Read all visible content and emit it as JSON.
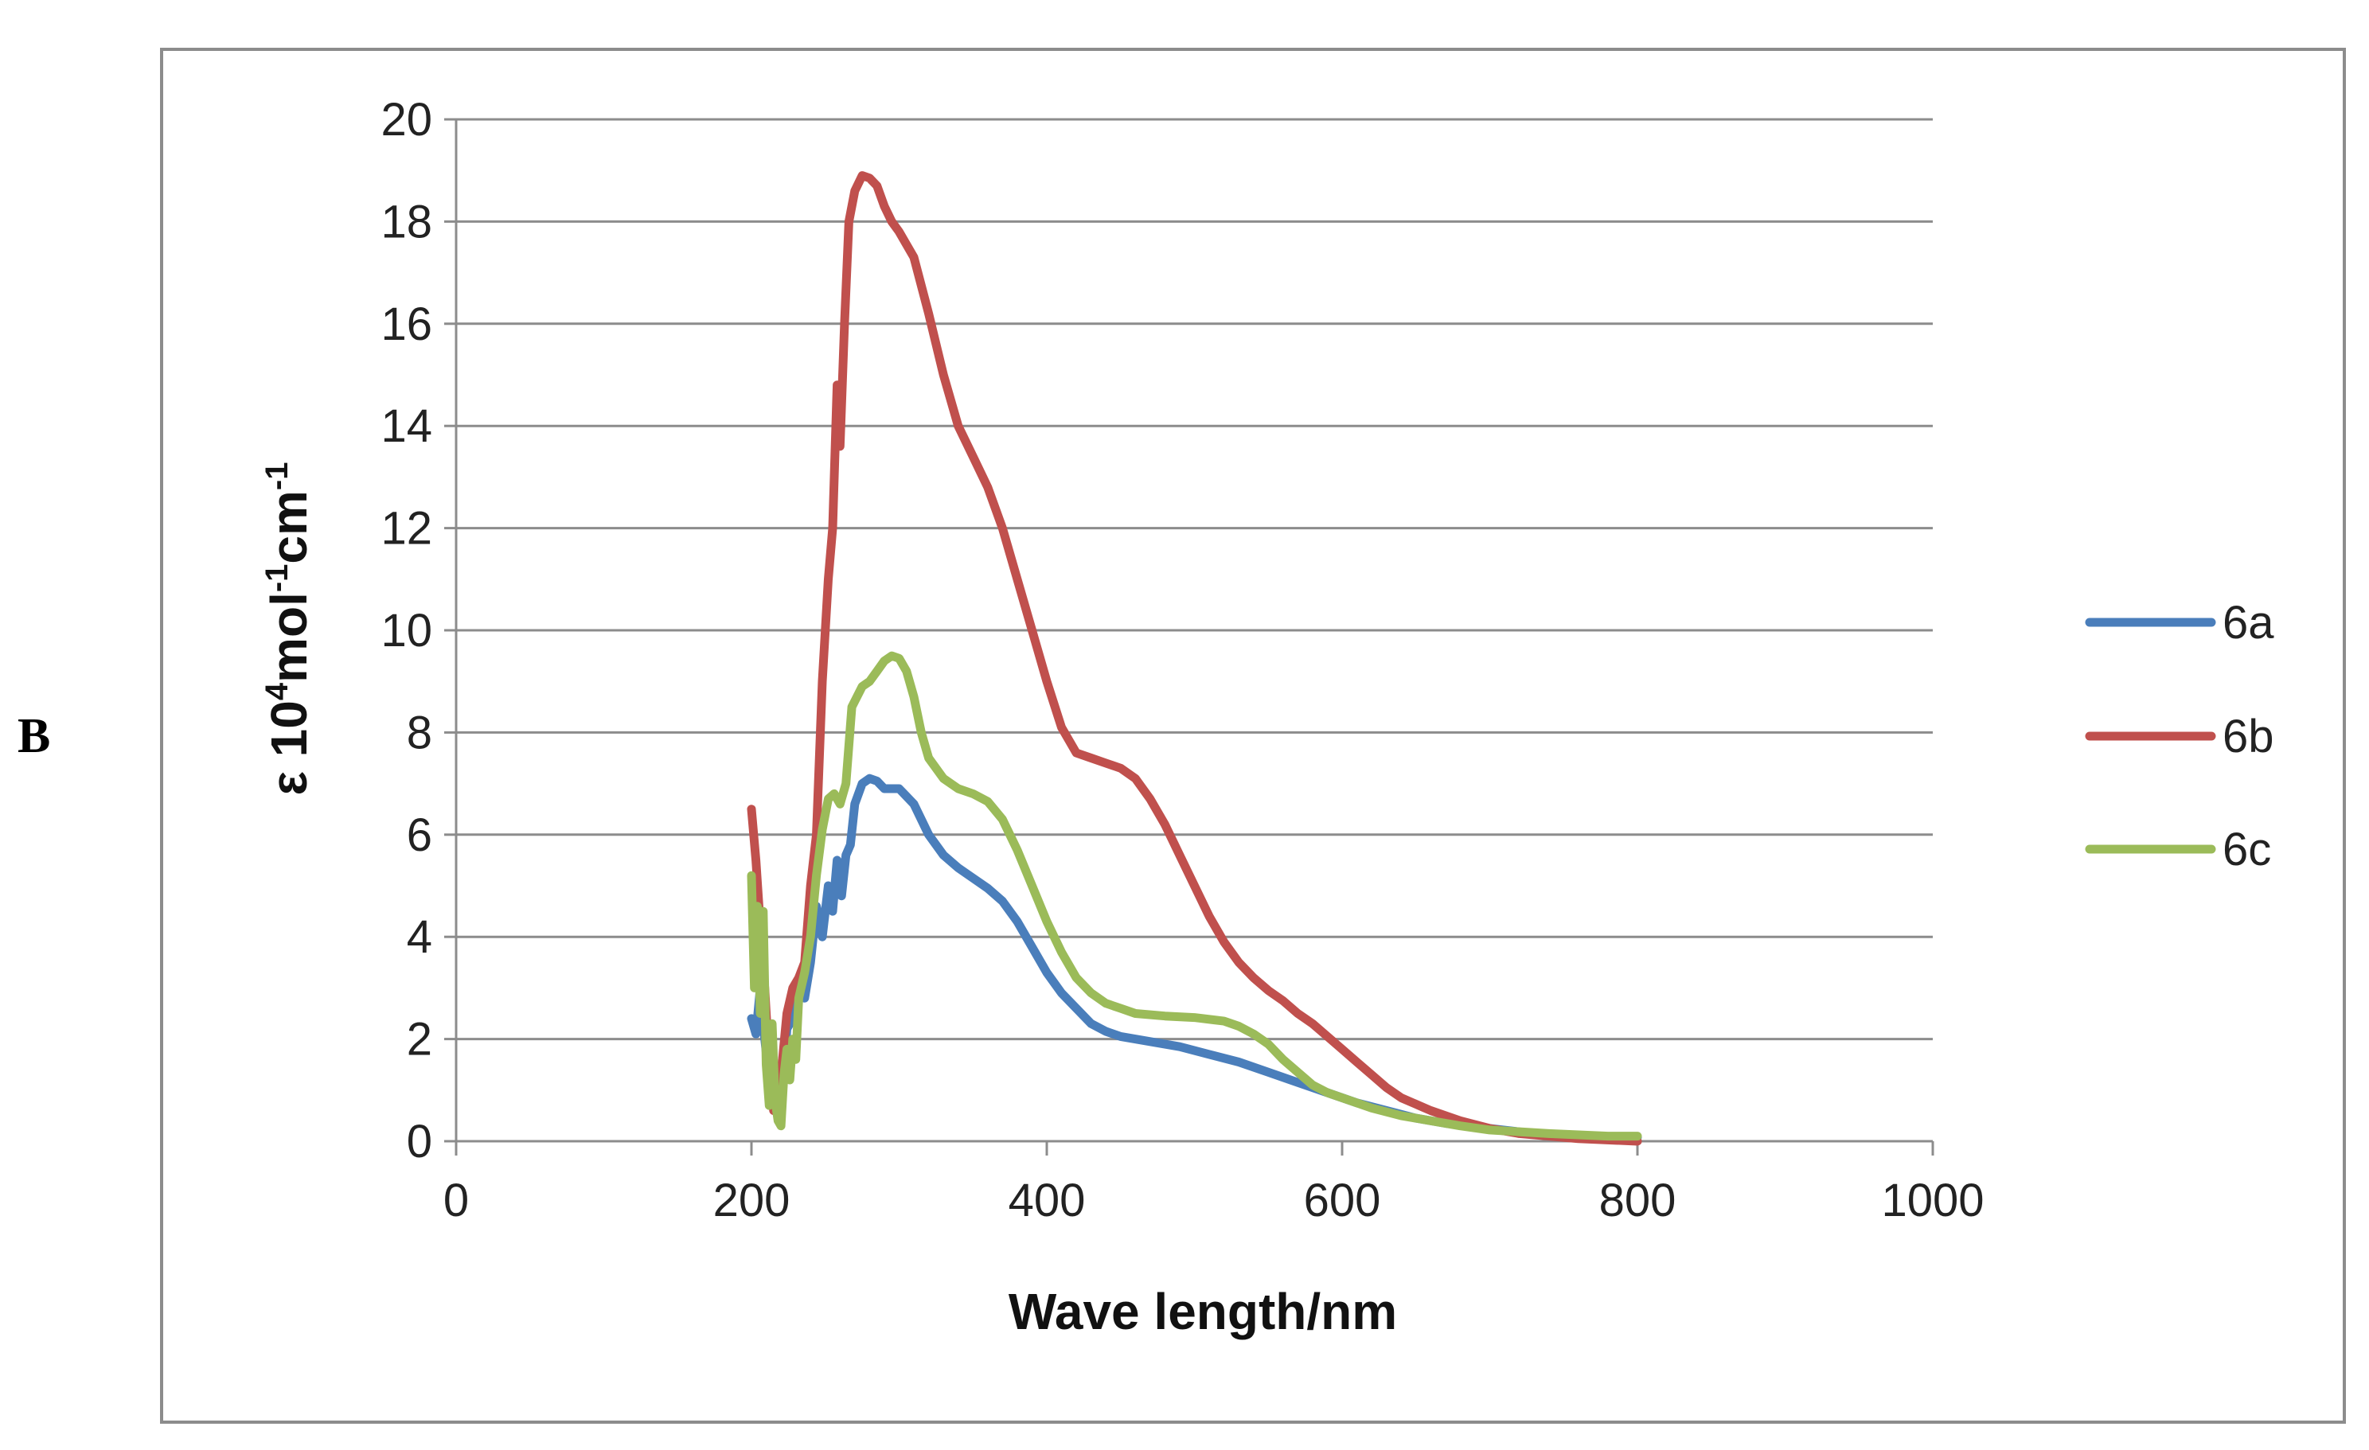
{
  "panel_label": "B",
  "chart_data": {
    "type": "line",
    "title": "",
    "xlabel": "Wave length/nm",
    "ylabel_main": "ε 10",
    "ylabel_sup1": "4",
    "ylabel_mid": "mol",
    "ylabel_sup2": "-1",
    "ylabel_mid2": "cm",
    "ylabel_sup3": "-1",
    "xlim": [
      0,
      1000
    ],
    "ylim": [
      0,
      20
    ],
    "xticks": [
      "0",
      "200",
      "400",
      "600",
      "800",
      "1000"
    ],
    "yticks": [
      "0",
      "2",
      "4",
      "6",
      "8",
      "10",
      "12",
      "14",
      "16",
      "18",
      "20"
    ],
    "grid": "horizontal",
    "legend_position": "right",
    "series": [
      {
        "name": "6a",
        "color": "#4a7ebb",
        "points": [
          [
            200,
            2.4
          ],
          [
            203,
            2.1
          ],
          [
            206,
            3.0
          ],
          [
            209,
            2.0
          ],
          [
            212,
            1.2
          ],
          [
            215,
            0.8
          ],
          [
            218,
            0.6
          ],
          [
            221,
            1.0
          ],
          [
            224,
            2.2
          ],
          [
            228,
            2.4
          ],
          [
            232,
            2.9
          ],
          [
            236,
            2.8
          ],
          [
            240,
            3.5
          ],
          [
            244,
            4.6
          ],
          [
            248,
            4.0
          ],
          [
            252,
            5.0
          ],
          [
            255,
            4.5
          ],
          [
            258,
            5.5
          ],
          [
            261,
            4.8
          ],
          [
            264,
            5.6
          ],
          [
            267,
            5.8
          ],
          [
            270,
            6.6
          ],
          [
            275,
            7.0
          ],
          [
            280,
            7.1
          ],
          [
            285,
            7.05
          ],
          [
            290,
            6.9
          ],
          [
            300,
            6.9
          ],
          [
            310,
            6.6
          ],
          [
            320,
            6.0
          ],
          [
            330,
            5.6
          ],
          [
            340,
            5.35
          ],
          [
            350,
            5.15
          ],
          [
            360,
            4.95
          ],
          [
            370,
            4.7
          ],
          [
            380,
            4.3
          ],
          [
            390,
            3.8
          ],
          [
            400,
            3.3
          ],
          [
            410,
            2.9
          ],
          [
            420,
            2.6
          ],
          [
            430,
            2.3
          ],
          [
            440,
            2.15
          ],
          [
            450,
            2.05
          ],
          [
            470,
            1.95
          ],
          [
            490,
            1.85
          ],
          [
            510,
            1.7
          ],
          [
            530,
            1.55
          ],
          [
            550,
            1.35
          ],
          [
            570,
            1.15
          ],
          [
            590,
            0.95
          ],
          [
            610,
            0.75
          ],
          [
            630,
            0.6
          ],
          [
            650,
            0.45
          ],
          [
            670,
            0.35
          ],
          [
            700,
            0.25
          ],
          [
            730,
            0.15
          ],
          [
            760,
            0.1
          ],
          [
            800,
            0.08
          ]
        ]
      },
      {
        "name": "6b",
        "color": "#c0504d",
        "points": [
          [
            200,
            6.5
          ],
          [
            203,
            5.5
          ],
          [
            206,
            4.2
          ],
          [
            209,
            3.0
          ],
          [
            212,
            1.5
          ],
          [
            215,
            0.6
          ],
          [
            218,
            0.9
          ],
          [
            221,
            1.6
          ],
          [
            224,
            2.5
          ],
          [
            228,
            3.0
          ],
          [
            232,
            3.2
          ],
          [
            236,
            3.5
          ],
          [
            240,
            5.0
          ],
          [
            244,
            6.0
          ],
          [
            248,
            9.0
          ],
          [
            252,
            11.0
          ],
          [
            255,
            12.0
          ],
          [
            258,
            14.8
          ],
          [
            260,
            13.6
          ],
          [
            263,
            16.0
          ],
          [
            266,
            18.0
          ],
          [
            270,
            18.6
          ],
          [
            275,
            18.9
          ],
          [
            280,
            18.85
          ],
          [
            285,
            18.7
          ],
          [
            290,
            18.3
          ],
          [
            295,
            18.0
          ],
          [
            300,
            17.8
          ],
          [
            310,
            17.3
          ],
          [
            320,
            16.2
          ],
          [
            330,
            15.0
          ],
          [
            340,
            14.0
          ],
          [
            350,
            13.4
          ],
          [
            360,
            12.8
          ],
          [
            370,
            12.0
          ],
          [
            380,
            11.0
          ],
          [
            390,
            10.0
          ],
          [
            400,
            9.0
          ],
          [
            410,
            8.1
          ],
          [
            420,
            7.6
          ],
          [
            430,
            7.5
          ],
          [
            440,
            7.4
          ],
          [
            450,
            7.3
          ],
          [
            460,
            7.1
          ],
          [
            470,
            6.7
          ],
          [
            480,
            6.2
          ],
          [
            490,
            5.6
          ],
          [
            500,
            5.0
          ],
          [
            510,
            4.4
          ],
          [
            520,
            3.9
          ],
          [
            530,
            3.5
          ],
          [
            540,
            3.2
          ],
          [
            550,
            2.95
          ],
          [
            560,
            2.75
          ],
          [
            570,
            2.5
          ],
          [
            580,
            2.3
          ],
          [
            590,
            2.05
          ],
          [
            600,
            1.8
          ],
          [
            610,
            1.55
          ],
          [
            620,
            1.3
          ],
          [
            630,
            1.05
          ],
          [
            640,
            0.85
          ],
          [
            660,
            0.6
          ],
          [
            680,
            0.4
          ],
          [
            700,
            0.25
          ],
          [
            720,
            0.15
          ],
          [
            760,
            0.05
          ],
          [
            800,
            0.0
          ]
        ]
      },
      {
        "name": "6c",
        "color": "#9bbb59",
        "points": [
          [
            200,
            5.2
          ],
          [
            202,
            3.0
          ],
          [
            204,
            4.6
          ],
          [
            206,
            2.5
          ],
          [
            208,
            4.5
          ],
          [
            210,
            1.5
          ],
          [
            212,
            0.7
          ],
          [
            214,
            2.3
          ],
          [
            216,
            0.8
          ],
          [
            218,
            0.4
          ],
          [
            220,
            0.3
          ],
          [
            222,
            1.3
          ],
          [
            224,
            1.8
          ],
          [
            226,
            1.2
          ],
          [
            228,
            2.0
          ],
          [
            230,
            1.6
          ],
          [
            232,
            2.8
          ],
          [
            236,
            3.3
          ],
          [
            240,
            4.0
          ],
          [
            244,
            5.2
          ],
          [
            248,
            6.1
          ],
          [
            252,
            6.7
          ],
          [
            256,
            6.8
          ],
          [
            260,
            6.6
          ],
          [
            264,
            7.0
          ],
          [
            268,
            8.5
          ],
          [
            275,
            8.9
          ],
          [
            280,
            9.0
          ],
          [
            285,
            9.2
          ],
          [
            290,
            9.4
          ],
          [
            295,
            9.5
          ],
          [
            300,
            9.45
          ],
          [
            305,
            9.2
          ],
          [
            310,
            8.7
          ],
          [
            315,
            8.0
          ],
          [
            320,
            7.5
          ],
          [
            330,
            7.1
          ],
          [
            340,
            6.9
          ],
          [
            350,
            6.8
          ],
          [
            360,
            6.65
          ],
          [
            370,
            6.3
          ],
          [
            380,
            5.7
          ],
          [
            390,
            5.0
          ],
          [
            400,
            4.3
          ],
          [
            410,
            3.7
          ],
          [
            420,
            3.2
          ],
          [
            430,
            2.9
          ],
          [
            440,
            2.7
          ],
          [
            450,
            2.6
          ],
          [
            460,
            2.5
          ],
          [
            480,
            2.45
          ],
          [
            500,
            2.42
          ],
          [
            520,
            2.35
          ],
          [
            530,
            2.25
          ],
          [
            540,
            2.1
          ],
          [
            550,
            1.9
          ],
          [
            560,
            1.6
          ],
          [
            570,
            1.35
          ],
          [
            580,
            1.1
          ],
          [
            590,
            0.95
          ],
          [
            600,
            0.85
          ],
          [
            620,
            0.65
          ],
          [
            640,
            0.5
          ],
          [
            660,
            0.4
          ],
          [
            680,
            0.3
          ],
          [
            700,
            0.22
          ],
          [
            740,
            0.15
          ],
          [
            780,
            0.1
          ],
          [
            800,
            0.1
          ]
        ]
      }
    ]
  }
}
